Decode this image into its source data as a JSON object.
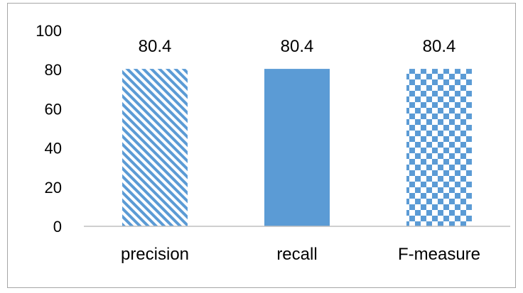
{
  "chart_data": {
    "type": "bar",
    "categories": [
      "precision",
      "recall",
      "F-measure"
    ],
    "values": [
      80.4,
      80.4,
      80.4
    ],
    "data_labels": [
      "80.4",
      "80.4",
      "80.4"
    ],
    "yticks": [
      "0",
      "20",
      "40",
      "60",
      "80",
      "100"
    ],
    "ylim": [
      0,
      100
    ],
    "grid": false,
    "legend": "none",
    "bar_fills": [
      "diagonal-stripes",
      "solid",
      "checkerboard"
    ],
    "colors": {
      "bar": "#5b9bd5",
      "axis": "#bfbfbf",
      "border": "#a6a6a6"
    }
  }
}
